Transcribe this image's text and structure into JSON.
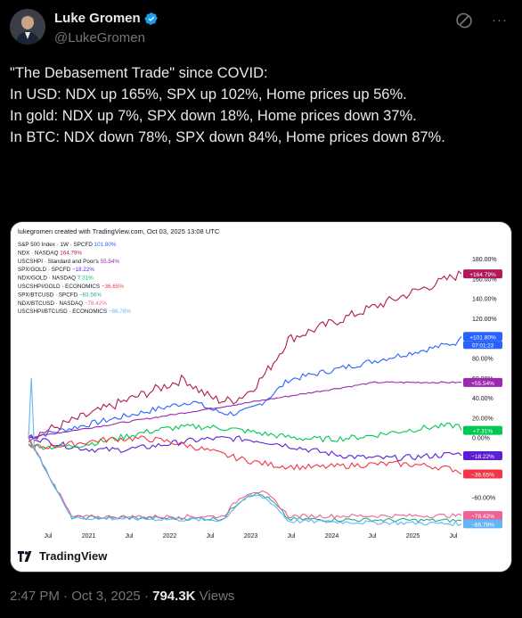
{
  "author": {
    "name": "Luke Gromen",
    "handle": "@LukeGromen",
    "verified_color": "#1d9bf0"
  },
  "tweet": {
    "lines": [
      "\"The Debasement Trade\" since COVID:",
      "",
      "In USD: NDX up 165%, SPX up 102%, Home prices up 56%.",
      "",
      "In gold: NDX up 7%, SPX down 18%, Home prices down 37%.",
      "",
      "In BTC: NDX down 78%, SPX down 84%, Home prices down 87%."
    ]
  },
  "footer": {
    "time": "2:47 PM",
    "sep1": "·",
    "date": "Oct 3, 2025",
    "sep2": "·",
    "views_count": "794.3K",
    "views_label": "Views"
  },
  "icons": {
    "top_left": "grok-icon",
    "top_right": "more-icon"
  },
  "media": {
    "tv_brand": "TradingView"
  },
  "chart_data": {
    "type": "line",
    "header": "lukegromen created with TradingView.com, Oct 03, 2025 13:08 UTC",
    "x_ticks": [
      "Jul",
      "2021",
      "Jul",
      "2022",
      "Jul",
      "2023",
      "Jul",
      "2024",
      "Jul",
      "2025",
      "Jul"
    ],
    "y_ticks": [
      "180.00%",
      "160.00%",
      "140.00%",
      "120.00%",
      "100.00%",
      "80.00%",
      "60.00%",
      "40.00%",
      "20.00%",
      "0.00%",
      "-60.00%"
    ],
    "ylim": [
      -90,
      190
    ],
    "series": [
      {
        "label": "S&P 500 Index · 1W · SPCFD",
        "value": "101.80%",
        "end": 101.8,
        "color": "#2962ff",
        "price_label": "+101.80%",
        "price_sub": "07:01:23"
      },
      {
        "label": "NDX · NASDAQ",
        "value": "164.79%",
        "end": 164.79,
        "color": "#b0195a",
        "price_label": "+164.79%"
      },
      {
        "label": "USCSHPI · Standard and Poor's",
        "value": "55.54%",
        "end": 55.54,
        "color": "#9c27b0",
        "price_label": "+55.54%"
      },
      {
        "label": "SPX/GOLD · SPCFD",
        "value": "−18.22%",
        "end": -18.22,
        "color": "#5b1fd6",
        "price_label": "−18.22%"
      },
      {
        "label": "NDX/GOLD · NASDAQ",
        "value": "7.31%",
        "end": 7.31,
        "color": "#00c853",
        "price_label": "+7.31%"
      },
      {
        "label": "USCSHPI/GOLD · ECONOMICS",
        "value": "−36.65%",
        "end": -36.65,
        "color": "#f23645",
        "price_label": "−36.65%"
      },
      {
        "label": "SPX/BTCUSD · SPCFD",
        "value": "−83.56%",
        "end": -83.56,
        "color": "#22ab94",
        "price_label": "−83.56%"
      },
      {
        "label": "NDX/BTCUSD · NASDAQ",
        "value": "−78.42%",
        "end": -78.42,
        "color": "#f06292",
        "price_label": "−78.42%"
      },
      {
        "label": "USCSHPI/BTCUSD · ECONOMICS",
        "value": "−86.78%",
        "end": -86.78,
        "color": "#64b5f6",
        "price_label": "−86.78%"
      }
    ]
  }
}
